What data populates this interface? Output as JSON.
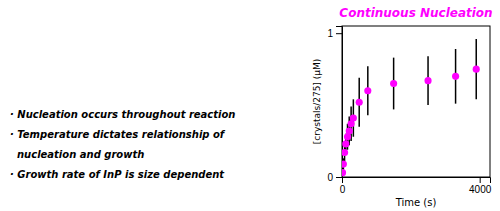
{
  "chart_data": {
    "type": "scatter",
    "title": "Continuous Nucleation",
    "x_label": "Time (s)",
    "y_label": "[crystals/275] (μM)",
    "x": [
      15,
      40,
      75,
      110,
      160,
      210,
      265,
      330,
      500,
      750,
      1500,
      2500,
      3300,
      3900
    ],
    "y": [
      0.03,
      0.09,
      0.17,
      0.23,
      0.28,
      0.32,
      0.37,
      0.41,
      0.52,
      0.6,
      0.65,
      0.67,
      0.7,
      0.75
    ],
    "error_low": [
      0.02,
      0.04,
      0.06,
      0.07,
      0.09,
      0.1,
      0.12,
      0.13,
      0.17,
      0.17,
      0.18,
      0.17,
      0.19,
      0.21
    ],
    "error_high": [
      0.02,
      0.04,
      0.06,
      0.07,
      0.09,
      0.1,
      0.12,
      0.13,
      0.17,
      0.17,
      0.18,
      0.17,
      0.19,
      0.21
    ],
    "color": "#FF00FF",
    "marker": "circle",
    "xlim": [
      0,
      4300
    ],
    "ylim": [
      0,
      1.05
    ],
    "xticks": [
      0,
      4000
    ],
    "yticks": [
      0,
      1
    ],
    "annotations": [
      "· Nucleation occurs throughout reaction",
      "· Temperature dictates relationship of",
      "  nucleation and growth",
      "· Growth rate of InP is size dependent"
    ]
  }
}
